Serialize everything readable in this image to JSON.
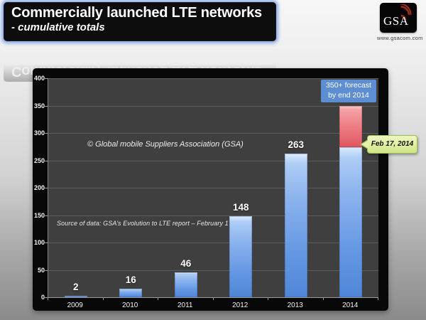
{
  "header": {
    "title": "Commercially launched LTE networks",
    "subtitle": "- cumulative totals"
  },
  "logo": {
    "text": "GSA",
    "website": "www.gsacom.com"
  },
  "chart_data": {
    "type": "bar",
    "title": "Commercially launched LTE networks - cumulative totals",
    "categories": [
      "2009",
      "2010",
      "2011",
      "2012",
      "2013",
      "2014"
    ],
    "values": [
      2,
      16,
      46,
      148,
      263,
      274
    ],
    "series": [
      {
        "name": "Commercially launched LTE networks (cumulative total)",
        "values": [
          2,
          16,
          46,
          148,
          263,
          274
        ]
      }
    ],
    "forecast": {
      "category": "2014",
      "total": 350,
      "label_line1": "350+ forecast",
      "label_line2": "by end 2014"
    },
    "xlabel": "",
    "ylabel": "",
    "ylim": [
      0,
      400
    ],
    "yticks": [
      0,
      50,
      100,
      150,
      200,
      250,
      300,
      350,
      400
    ],
    "grid": true,
    "legend": "none",
    "watermark": "© Global mobile Suppliers Association (GSA)",
    "source_note": "Source of data: GSA’s Evolution to LTE report – February 17, 2014",
    "callout": "Feb 17, 2014",
    "colors": {
      "bar_blue": "#5f92dd",
      "bar_blue_light": "#aecdf6",
      "forecast_red": "#e4636b",
      "plot_background": "#3f3f3f",
      "gridline": "#5c5c5c",
      "chart_frame": "#080808",
      "forecast_label_bg": "#5d8ed2",
      "callout_bg": "#ddefa0",
      "callout_border": "#9abf55",
      "title_glow": "#80a3e6"
    }
  }
}
